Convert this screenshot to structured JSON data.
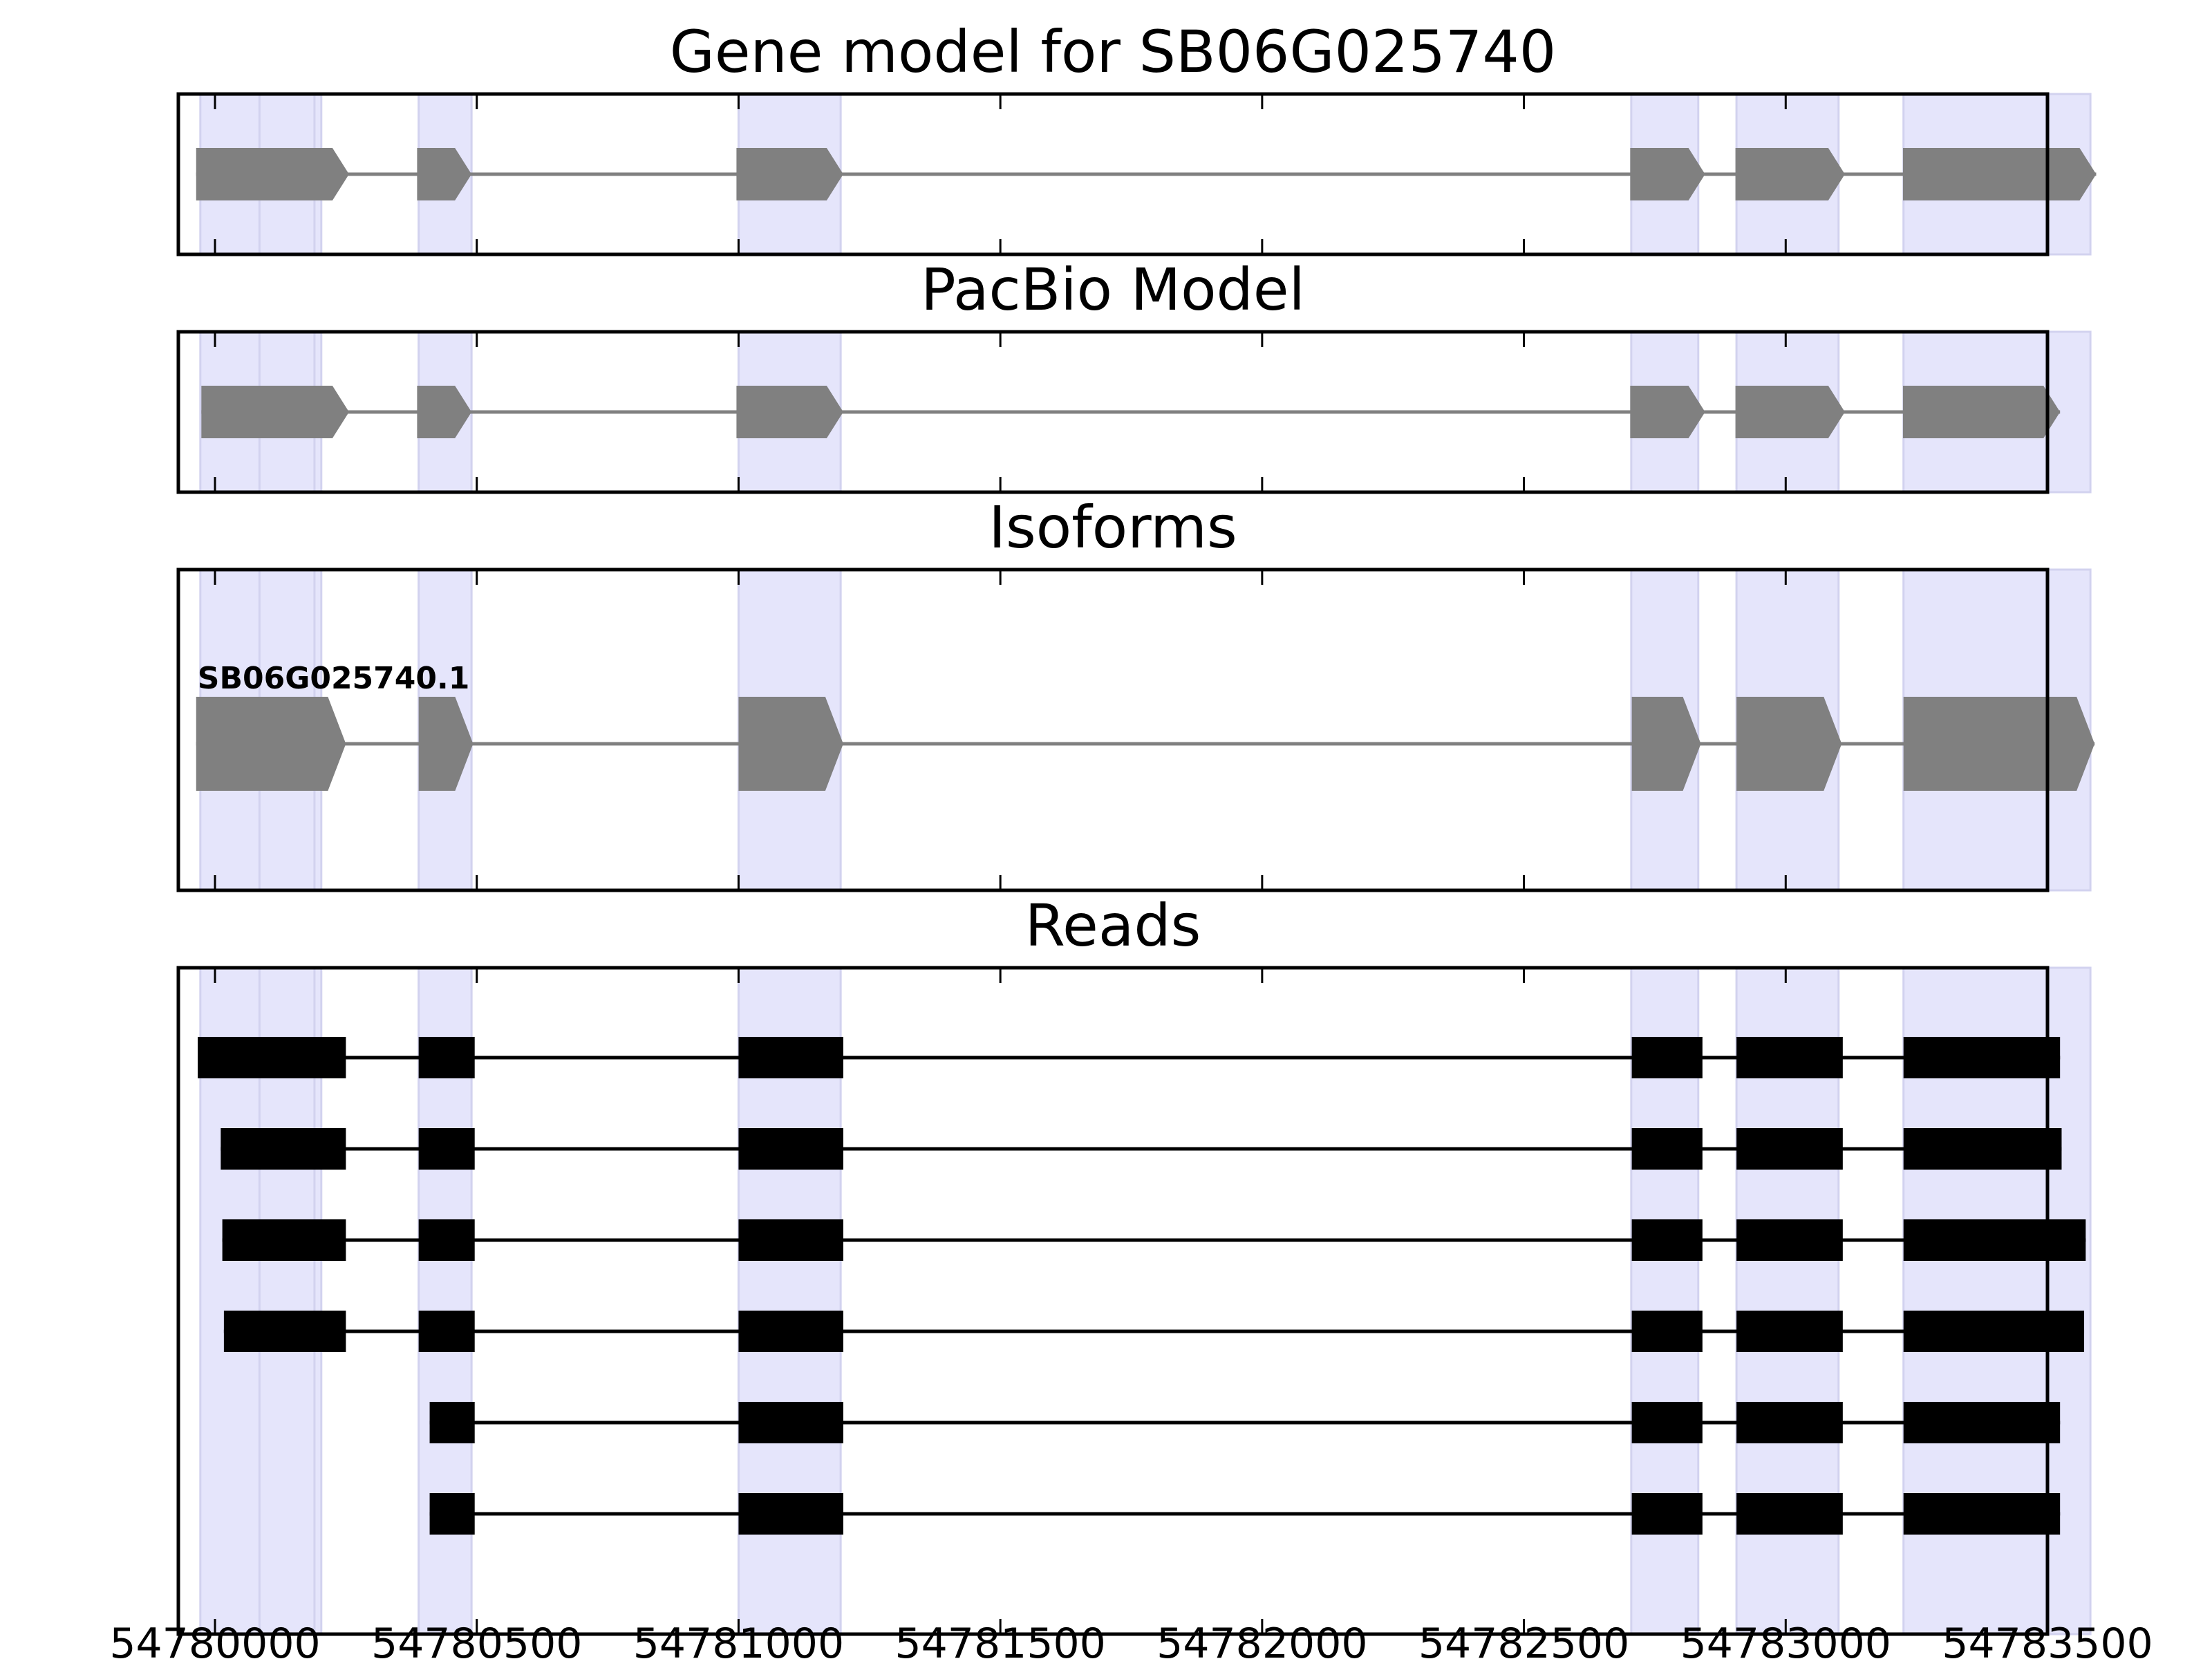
{
  "chart_data": {
    "type": "gene-model",
    "xlim": [
      54779930,
      54783500
    ],
    "x_ticks": [
      54780000,
      54780500,
      54781000,
      54781500,
      54782000,
      54782500,
      54783000,
      54783500
    ],
    "x_tick_labels": [
      "54780000",
      "54780500",
      "54781000",
      "54781500",
      "54782000",
      "54782500",
      "54783000",
      "54783500"
    ],
    "highlight_regions": [
      [
        54779972,
        54780203
      ],
      [
        54780085,
        54780190
      ],
      [
        54780389,
        54780490
      ],
      [
        54781000,
        54781195
      ],
      [
        54782705,
        54782833
      ],
      [
        54782906,
        54783101
      ],
      [
        54783225,
        54783582
      ]
    ],
    "panels": [
      {
        "title": "Gene model for SB06G025740",
        "style": "arrow",
        "tracks": [
          {
            "label": "",
            "exons": [
              [
                54779964,
                54780211
              ],
              [
                54780136,
                54780256
              ],
              [
                54780386,
                54780490
              ],
              [
                54780996,
                54781200
              ],
              [
                54782703,
                54782846
              ],
              [
                54782904,
                54783113
              ],
              [
                54783224,
                54783593
              ]
            ]
          }
        ]
      },
      {
        "title": "PacBio Model",
        "style": "arrow",
        "tracks": [
          {
            "label": "",
            "exons": [
              [
                54779974,
                54780211
              ],
              [
                54780136,
                54780256
              ],
              [
                54780386,
                54780490
              ],
              [
                54780996,
                54781200
              ],
              [
                54782703,
                54782846
              ],
              [
                54782904,
                54783113
              ],
              [
                54783224,
                54783524
              ]
            ]
          }
        ]
      },
      {
        "title": "Isoforms",
        "style": "arrow-tall",
        "tracks": [
          {
            "label": "SB06G025740.1",
            "exons": [
              [
                54779964,
                54780211
              ],
              [
                54780136,
                54780250
              ],
              [
                54780389,
                54780493
              ],
              [
                54781000,
                54781200
              ],
              [
                54782706,
                54782838
              ],
              [
                54782906,
                54783107
              ],
              [
                54783225,
                54783590
              ]
            ]
          }
        ]
      },
      {
        "title": "Reads",
        "style": "box",
        "tracks": [
          {
            "label": "",
            "exons": [
              [
                54779967,
                54780206
              ],
              [
                54780137,
                54780250
              ],
              [
                54780389,
                54780496
              ],
              [
                54781000,
                54781200
              ],
              [
                54782706,
                54782841
              ],
              [
                54782906,
                54783109
              ],
              [
                54783225,
                54783524
              ]
            ]
          },
          {
            "label": "",
            "exons": [
              [
                54780011,
                54780206
              ],
              [
                54780137,
                54780250
              ],
              [
                54780389,
                54780496
              ],
              [
                54781000,
                54781200
              ],
              [
                54782706,
                54782841
              ],
              [
                54782906,
                54783109
              ],
              [
                54783225,
                54783527
              ]
            ]
          },
          {
            "label": "",
            "exons": [
              [
                54780014,
                54780206
              ],
              [
                54780137,
                54780250
              ],
              [
                54780389,
                54780496
              ],
              [
                54781000,
                54781200
              ],
              [
                54782706,
                54782841
              ],
              [
                54782906,
                54783109
              ],
              [
                54783225,
                54783573
              ]
            ]
          },
          {
            "label": "",
            "exons": [
              [
                54780017,
                54780206
              ],
              [
                54780137,
                54780250
              ],
              [
                54780389,
                54780496
              ],
              [
                54781000,
                54781200
              ],
              [
                54782706,
                54782841
              ],
              [
                54782906,
                54783109
              ],
              [
                54783225,
                54783570
              ]
            ]
          },
          {
            "label": "",
            "exons": [
              [
                54780410,
                54780496
              ],
              [
                54781000,
                54781200
              ],
              [
                54782706,
                54782841
              ],
              [
                54782906,
                54783109
              ],
              [
                54783225,
                54783524
              ]
            ]
          },
          {
            "label": "",
            "exons": [
              [
                54780410,
                54780496
              ],
              [
                54781000,
                54781200
              ],
              [
                54782706,
                54782841
              ],
              [
                54782906,
                54783109
              ],
              [
                54783225,
                54783524
              ]
            ]
          }
        ]
      }
    ],
    "colors": {
      "highlight": "#e5e5fb",
      "highlight_edge": "#d2d2ef",
      "gene_shape": "#808080",
      "intron_gene": "#808080",
      "read_block": "#000000",
      "intron_read": "#000000",
      "frame": "#000000"
    }
  }
}
